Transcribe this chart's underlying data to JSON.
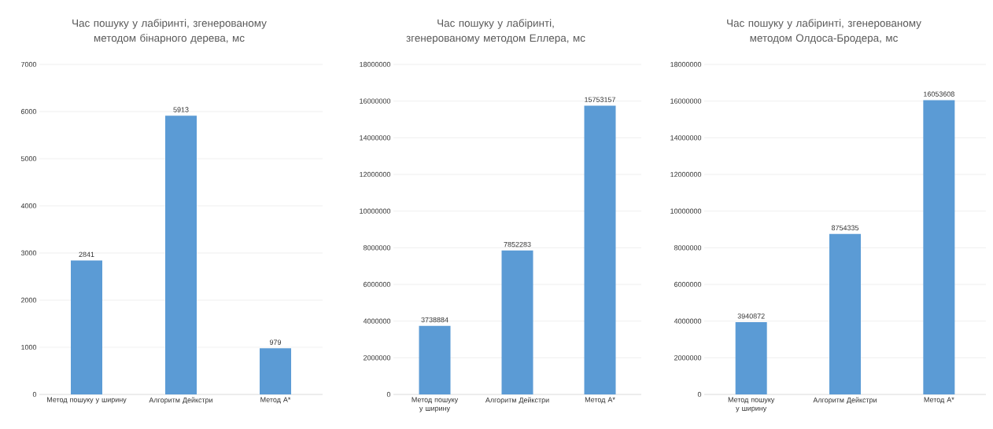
{
  "chart_data": [
    {
      "type": "bar",
      "title": "Час пошуку у лабіринті, згенерованому методом бінарного дерева, мс",
      "categories": [
        "Метод пошуку у ширину",
        "Алгоритм Дейкстри",
        "Метод A*"
      ],
      "values": [
        2841,
        5913,
        979
      ],
      "color": "#5b9bd5",
      "ylim": [
        0,
        7000
      ],
      "yticks": [
        0,
        1000,
        2000,
        3000,
        4000,
        5000,
        6000,
        7000
      ],
      "grid": "y",
      "data_labels": true
    },
    {
      "type": "bar",
      "title": "Час пошуку у лабіринті, згенерованому методом Еллера, мс",
      "categories": [
        "Метод пошуку у ширину",
        "Алгоритм Дейкстри",
        "Метод A*"
      ],
      "values": [
        3738884,
        7852283,
        15753157
      ],
      "color": "#5b9bd5",
      "ylim": [
        0,
        18000000
      ],
      "yticks": [
        0,
        2000000,
        4000000,
        6000000,
        8000000,
        10000000,
        12000000,
        14000000,
        16000000,
        18000000
      ],
      "grid": "y",
      "data_labels": true
    },
    {
      "type": "bar",
      "title": "Час пошуку у лабіринті, згенерованому методом Олдоса-Бродера, мс",
      "categories": [
        "Метод пошуку у ширину",
        "Алгоритм Дейкстри",
        "Метод A*"
      ],
      "values": [
        3940872,
        8754335,
        16053608
      ],
      "color": "#5b9bd5",
      "ylim": [
        0,
        18000000
      ],
      "yticks": [
        0,
        2000000,
        4000000,
        6000000,
        8000000,
        10000000,
        12000000,
        14000000,
        16000000,
        18000000
      ],
      "grid": "y",
      "data_labels": true
    }
  ]
}
